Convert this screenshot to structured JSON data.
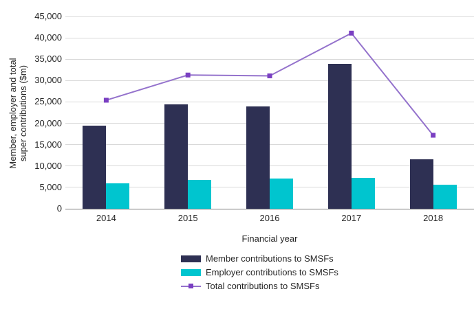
{
  "chart_data": {
    "type": "bar",
    "combo": "grouped bars with line overlay",
    "title": "",
    "xlabel": "Financial year",
    "ylabel": "Member, employer and total super contributions ($m)",
    "ylabel_line1": "Member, employer and total",
    "ylabel_line2": "super contributions ($m)",
    "categories": [
      "2014",
      "2015",
      "2016",
      "2017",
      "2018"
    ],
    "series": [
      {
        "name": "Member contributions to SMSFs",
        "type": "bar",
        "color": "#2E3053",
        "values": [
          19400,
          24500,
          24000,
          33900,
          11500
        ]
      },
      {
        "name": "Employer contributions to SMSFs",
        "type": "bar",
        "color": "#00C5CF",
        "values": [
          6000,
          6800,
          7100,
          7200,
          5700
        ]
      },
      {
        "name": "Total contributions to SMSFs",
        "type": "line",
        "color": "#9472CC",
        "marker": "square",
        "marker_color": "#7A3FC2",
        "values": [
          25400,
          31300,
          31100,
          41100,
          17200
        ]
      }
    ],
    "ylim": [
      0,
      45000
    ],
    "ytick_step": 5000,
    "ytick_labels": [
      "0",
      "5,000",
      "10,000",
      "15,000",
      "20,000",
      "25,000",
      "30,000",
      "35,000",
      "40,000",
      "45,000"
    ],
    "grid": "horizontal",
    "legend_position": "bottom-center"
  },
  "colors": {
    "background": "#FFFFFF",
    "gridline": "#D9D9D9",
    "axis_line": "#7A7A7A",
    "text": "#262626"
  }
}
